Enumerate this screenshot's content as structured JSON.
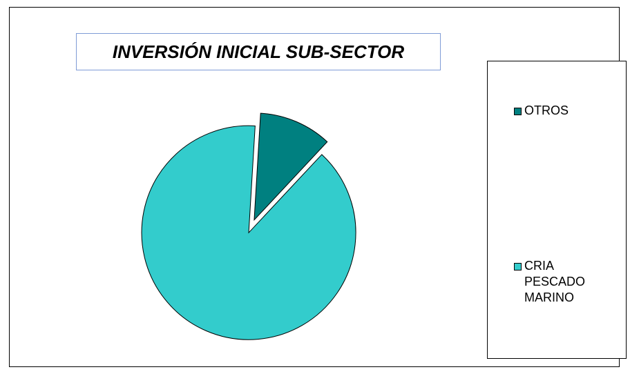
{
  "chart_data": {
    "type": "pie",
    "title": "INVERSIÓN INICIAL SUB-SECTOR",
    "categories": [
      "OTROS",
      "CRIA PESCADO MARINO"
    ],
    "values": [
      11,
      89
    ],
    "unit": "%",
    "colors": [
      "#008080",
      "#33CCCC"
    ],
    "exploded": [
      true,
      true
    ],
    "legend_position": "right"
  }
}
